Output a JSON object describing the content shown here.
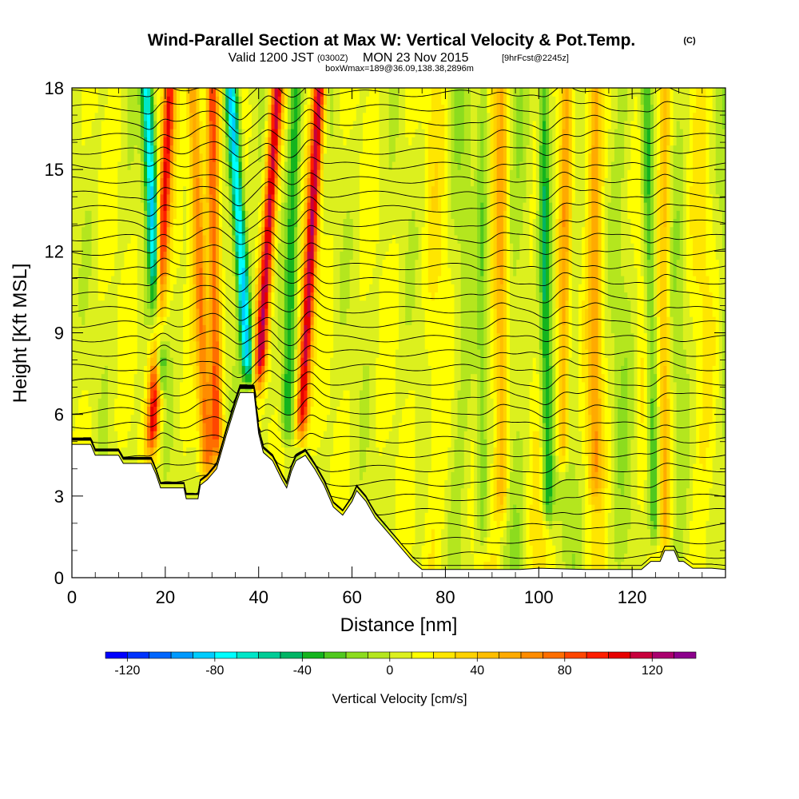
{
  "header": {
    "title": "Wind-Parallel Section at Max W: Vertical Velocity & Pot.Temp.",
    "copyright": "(C)",
    "valid_prefix": "Valid 1200 JST",
    "valid_utc": "(0300Z)",
    "valid_date": "MON 23 Nov 2015",
    "forecast_tag": "[9hrFcst@2245z]",
    "box_info": "boxWmax=189@36.09,138.38,2896m"
  },
  "chart_data": {
    "type": "heatmap",
    "title": "Wind-Parallel Section at Max W: Vertical Velocity & Pot.Temp.",
    "xlabel": "Distance [nm]",
    "ylabel": "Height [Kft MSL]",
    "xlim": [
      0,
      140
    ],
    "ylim": [
      0,
      18
    ],
    "x_ticks": [
      "0",
      "20",
      "40",
      "60",
      "80",
      "100",
      "120"
    ],
    "y_ticks": [
      "0",
      "3",
      "6",
      "9",
      "12",
      "15",
      "18"
    ],
    "x_tick_values": [
      0,
      20,
      40,
      60,
      80,
      100,
      120
    ],
    "y_tick_values": [
      0,
      3,
      6,
      9,
      12,
      15,
      18
    ],
    "colorbar": {
      "label": "Vertical Velocity [cm/s]",
      "min": -130,
      "max": 140,
      "step": 10,
      "tick_labels": [
        "-120",
        "-80",
        "-40",
        "0",
        "40",
        "80",
        "120"
      ],
      "tick_values": [
        -120,
        -80,
        -40,
        0,
        40,
        80,
        120
      ],
      "colors": [
        "#0000ff",
        "#0033ff",
        "#0066ff",
        "#0099ff",
        "#00ccff",
        "#00ffff",
        "#00e6c8",
        "#00cc96",
        "#00b464",
        "#14b41e",
        "#50c81e",
        "#8cdc1e",
        "#b4e61e",
        "#dcf01e",
        "#ffff00",
        "#ffe600",
        "#ffd200",
        "#ffbe00",
        "#ffaa00",
        "#ff8c00",
        "#ff6e00",
        "#ff4600",
        "#ff1e00",
        "#e60000",
        "#c8003c",
        "#aa006e",
        "#8c008c"
      ]
    },
    "terrain_kft": [
      [
        0,
        4.9
      ],
      [
        4,
        4.9
      ],
      [
        5,
        4.5
      ],
      [
        10,
        4.5
      ],
      [
        11,
        4.2
      ],
      [
        17,
        4.2
      ],
      [
        18,
        3.8
      ],
      [
        19,
        3.3
      ],
      [
        24,
        3.3
      ],
      [
        24.5,
        2.9
      ],
      [
        27,
        2.9
      ],
      [
        27.5,
        3.4
      ],
      [
        29,
        3.6
      ],
      [
        31,
        4.0
      ],
      [
        33,
        5.2
      ],
      [
        35,
        6.3
      ],
      [
        36,
        6.8
      ],
      [
        39,
        6.8
      ],
      [
        40,
        5.3
      ],
      [
        41,
        4.6
      ],
      [
        43,
        4.3
      ],
      [
        45,
        3.6
      ],
      [
        46,
        3.3
      ],
      [
        47,
        3.9
      ],
      [
        48,
        4.3
      ],
      [
        50,
        4.5
      ],
      [
        52,
        4.0
      ],
      [
        54,
        3.4
      ],
      [
        56,
        2.6
      ],
      [
        58,
        2.3
      ],
      [
        60,
        2.8
      ],
      [
        61,
        3.2
      ],
      [
        63,
        2.8
      ],
      [
        65,
        2.2
      ],
      [
        67,
        1.8
      ],
      [
        69,
        1.4
      ],
      [
        71,
        1.0
      ],
      [
        73,
        0.6
      ],
      [
        75,
        0.3
      ],
      [
        96,
        0.3
      ],
      [
        100,
        0.35
      ],
      [
        110,
        0.3
      ],
      [
        122,
        0.3
      ],
      [
        124,
        0.6
      ],
      [
        126,
        0.6
      ],
      [
        127,
        1.0
      ],
      [
        129,
        1.0
      ],
      [
        130,
        0.6
      ],
      [
        131,
        0.6
      ],
      [
        133,
        0.35
      ],
      [
        137,
        0.35
      ],
      [
        140,
        0.3
      ]
    ],
    "updraft_bands": [
      {
        "x_top": 21,
        "x_bottom": 17,
        "z_bottom": 4.5,
        "peak": 95
      },
      {
        "x_top": 26,
        "x_bottom": 29,
        "z_bottom": 3.5,
        "peak": 60
      },
      {
        "x_top": 30,
        "x_bottom": 31,
        "z_bottom": 4.2,
        "peak": 75
      },
      {
        "x_top": 44,
        "x_bottom": 40,
        "z_bottom": 7.0,
        "peak": 105
      },
      {
        "x_top": 53,
        "x_bottom": 49,
        "z_bottom": 5.0,
        "peak": 110
      },
      {
        "x_top": 92,
        "x_bottom": 92,
        "z_bottom": 2.0,
        "peak": 40
      },
      {
        "x_top": 106,
        "x_bottom": 105,
        "z_bottom": 4.0,
        "peak": 55
      },
      {
        "x_top": 112,
        "x_bottom": 112,
        "z_bottom": 3.0,
        "peak": 40
      },
      {
        "x_top": 127,
        "x_bottom": 127,
        "z_bottom": 1.0,
        "peak": 40
      }
    ],
    "downdraft_bands": [
      {
        "x_top": 16,
        "x_bottom": 19,
        "z_bottom": 7.0,
        "peak": -85
      },
      {
        "x_top": 34,
        "x_bottom": 38,
        "z_bottom": 7.0,
        "peak": -95
      },
      {
        "x_top": 48,
        "x_bottom": 46,
        "z_bottom": 5.0,
        "peak": -45
      },
      {
        "x_top": 101,
        "x_bottom": 102,
        "z_bottom": 2.0,
        "peak": -55
      },
      {
        "x_top": 123,
        "x_bottom": 125,
        "z_bottom": 1.0,
        "peak": -45
      },
      {
        "x_top": 88,
        "x_bottom": 88,
        "z_bottom": 1.0,
        "peak": -30
      }
    ],
    "isentrope_count": 34,
    "isentrope_range_kft": [
      0.3,
      17.8
    ]
  }
}
